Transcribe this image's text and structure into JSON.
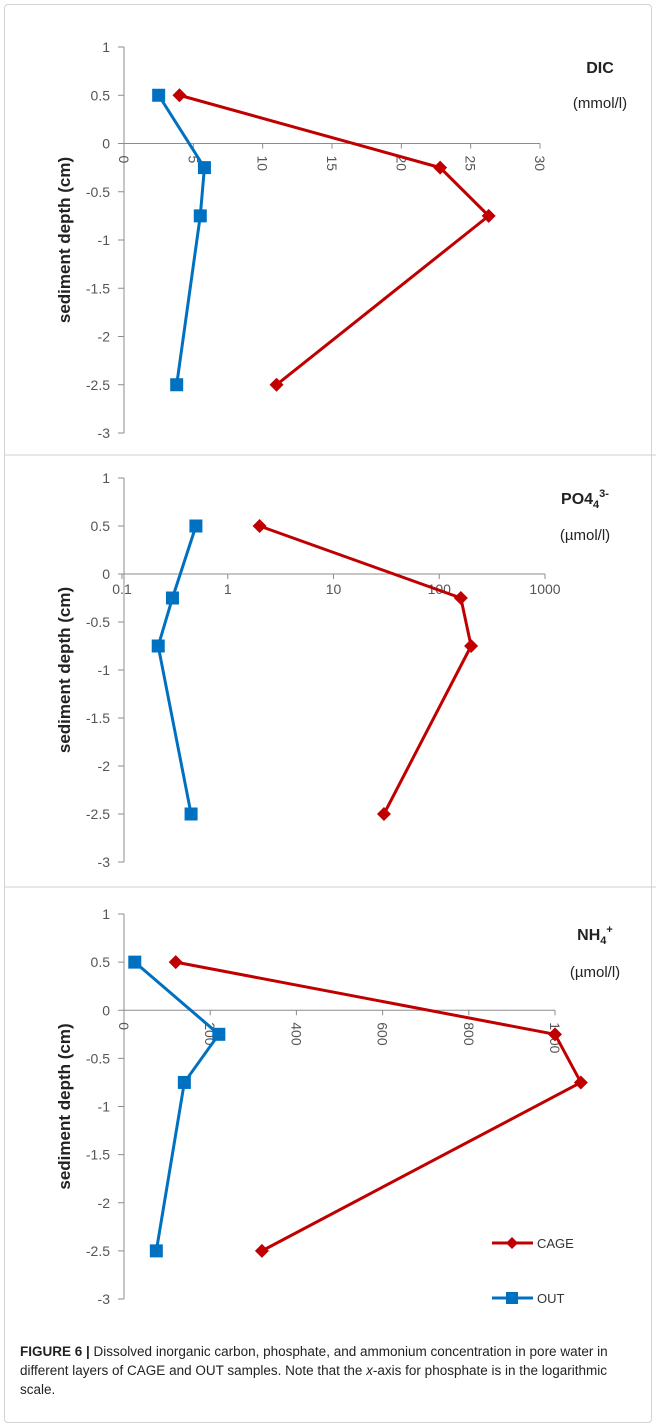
{
  "chart_data": [
    {
      "type": "line",
      "title": "DIC",
      "unit": "(mmol/l)",
      "ylabel": "sediment depth (cm)",
      "xlim": [
        0,
        30
      ],
      "ylim": [
        -3,
        1
      ],
      "x_ticks": [
        "0",
        "5",
        "10",
        "15",
        "20",
        "25",
        "30"
      ],
      "y_ticks": [
        "1",
        "0.5",
        "0",
        "-0.5",
        "-1",
        "-1.5",
        "-2",
        "-2.5",
        "-3"
      ],
      "series": [
        {
          "name": "CAGE",
          "color": "#c00000",
          "marker": "diamond",
          "points": [
            {
              "x": 4,
              "y": 0.5
            },
            {
              "x": 22.8,
              "y": -0.25
            },
            {
              "x": 26.3,
              "y": -0.75
            },
            {
              "x": 11,
              "y": -2.5
            }
          ]
        },
        {
          "name": "OUT",
          "color": "#0070c0",
          "marker": "square",
          "points": [
            {
              "x": 2.5,
              "y": 0.5
            },
            {
              "x": 5.8,
              "y": -0.25
            },
            {
              "x": 5.5,
              "y": -0.75
            },
            {
              "x": 3.8,
              "y": -2.5
            }
          ]
        }
      ]
    },
    {
      "type": "line",
      "title": "PO4",
      "title_sub": "4",
      "title_sup": "3-",
      "unit": "(µmol/l)",
      "ylabel": "sediment depth (cm)",
      "xscale": "log",
      "xlim": [
        0.1,
        1000
      ],
      "ylim": [
        -3,
        1
      ],
      "x_ticks": [
        "0.1",
        "1",
        "10",
        "100",
        "1000"
      ],
      "y_ticks": [
        "1",
        "0.5",
        "0",
        "-0.5",
        "-1",
        "-1.5",
        "-2",
        "-2.5",
        "-3"
      ],
      "series": [
        {
          "name": "CAGE",
          "color": "#c00000",
          "marker": "diamond",
          "points": [
            {
              "x": 2,
              "y": 0.5
            },
            {
              "x": 160,
              "y": -0.25
            },
            {
              "x": 200,
              "y": -0.75
            },
            {
              "x": 30,
              "y": -2.5
            }
          ]
        },
        {
          "name": "OUT",
          "color": "#0070c0",
          "marker": "square",
          "points": [
            {
              "x": 0.5,
              "y": 0.5
            },
            {
              "x": 0.3,
              "y": -0.25
            },
            {
              "x": 0.22,
              "y": -0.75
            },
            {
              "x": 0.45,
              "y": -2.5
            }
          ]
        }
      ]
    },
    {
      "type": "line",
      "title": "NH",
      "title_sub": "4",
      "title_sup": "+",
      "unit": "(µmol/l)",
      "ylabel": "sediment depth (cm)",
      "xlim": [
        0,
        1100
      ],
      "ylim": [
        -3,
        1
      ],
      "x_ticks": [
        "0",
        "200",
        "400",
        "600",
        "800",
        "1000"
      ],
      "y_ticks": [
        "1",
        "0.5",
        "0",
        "-0.5",
        "-1",
        "-1.5",
        "-2",
        "-2.5",
        "-3"
      ],
      "legend": "bottom-right",
      "series": [
        {
          "name": "CAGE",
          "color": "#c00000",
          "marker": "diamond",
          "points": [
            {
              "x": 120,
              "y": 0.5
            },
            {
              "x": 1000,
              "y": -0.25
            },
            {
              "x": 1060,
              "y": -0.75
            },
            {
              "x": 320,
              "y": -2.5
            }
          ]
        },
        {
          "name": "OUT",
          "color": "#0070c0",
          "marker": "square",
          "points": [
            {
              "x": 25,
              "y": 0.5
            },
            {
              "x": 220,
              "y": -0.25
            },
            {
              "x": 140,
              "y": -0.75
            },
            {
              "x": 75,
              "y": -2.5
            }
          ]
        }
      ]
    }
  ],
  "caption": {
    "label": "FIGURE 6 |",
    "text_before": " Dissolved inorganic carbon, phosphate, and ammonium concentration in pore water in different layers of CAGE and OUT samples. Note that the ",
    "italic": "x",
    "text_after": "-axis for phosphate is in the logarithmic scale."
  }
}
